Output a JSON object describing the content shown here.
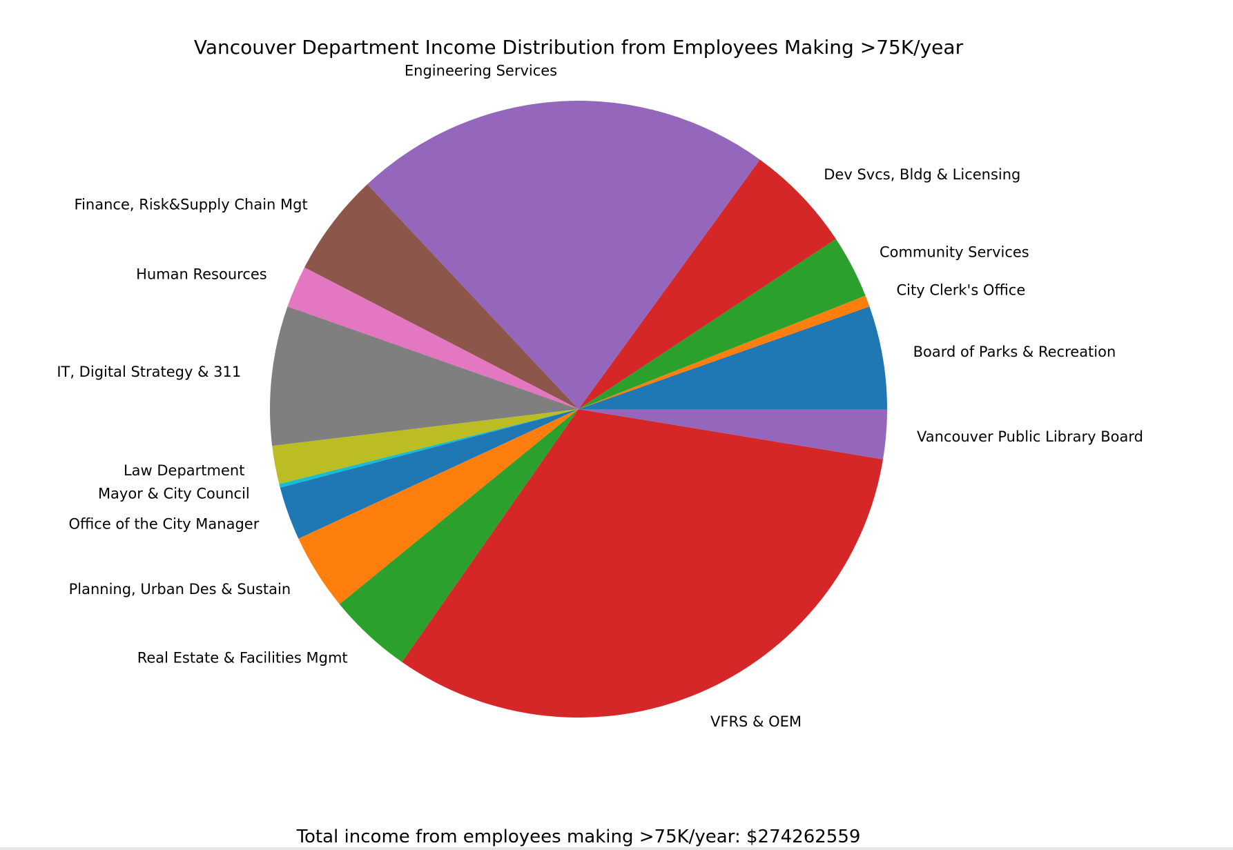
{
  "chart_data": {
    "type": "pie",
    "title": "Vancouver Department Income Distribution from Employees Making >75K/year",
    "start_angle_deg": 0,
    "direction": "counterclockwise",
    "slices": [
      {
        "label": "Board of Parks & Recreation",
        "value": 5.4,
        "color": "#1f77b4"
      },
      {
        "label": "City Clerk's Office",
        "value": 0.6,
        "color": "#ff7f0e"
      },
      {
        "label": "Community Services",
        "value": 3.3,
        "color": "#2ca02c"
      },
      {
        "label": "Dev Svcs, Bldg & Licensing",
        "value": 5.7,
        "color": "#d62728"
      },
      {
        "label": "Engineering Services",
        "value": 22.0,
        "color": "#9467bd"
      },
      {
        "label": "Finance, Risk&Supply Chain Mgt",
        "value": 5.4,
        "color": "#8c564b"
      },
      {
        "label": "Human Resources",
        "value": 2.2,
        "color": "#e377c2"
      },
      {
        "label": "IT, Digital Strategy & 311",
        "value": 7.3,
        "color": "#7f7f7f"
      },
      {
        "label": "Law Department",
        "value": 2.0,
        "color": "#bcbd22"
      },
      {
        "label": "Mayor & City Council",
        "value": 0.2,
        "color": "#17becf"
      },
      {
        "label": "Office of the City Manager",
        "value": 2.8,
        "color": "#1f77b4"
      },
      {
        "label": "Planning, Urban Des & Sustain",
        "value": 4.0,
        "color": "#ff7f0e"
      },
      {
        "label": "Real Estate & Facilities Mgmt",
        "value": 4.4,
        "color": "#2ca02c"
      },
      {
        "label": "VFRS & OEM",
        "value": 32.1,
        "color": "#d62728"
      },
      {
        "label": "Vancouver Public Library Board",
        "value": 2.6,
        "color": "#9467bd"
      }
    ],
    "footer": "Total income from employees making >75K/year: $274262559"
  }
}
